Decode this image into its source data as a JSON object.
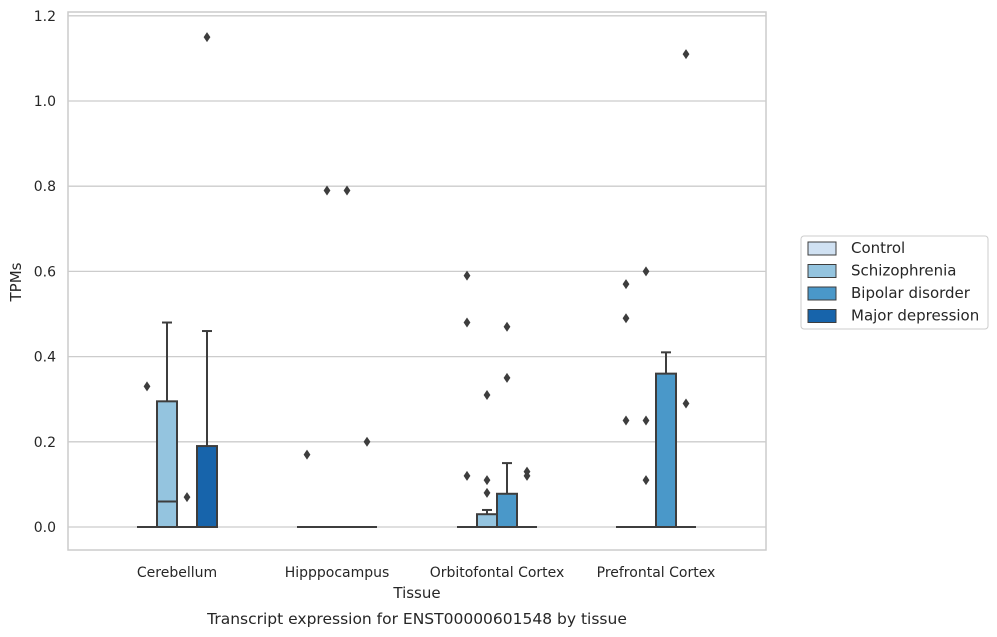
{
  "chart_data": {
    "type": "box",
    "title": "",
    "caption": "Transcript expression for ENST00000601548 by tissue",
    "xlabel": "Tissue",
    "ylabel": "TPMs",
    "ylim": [
      -0.055,
      1.21
    ],
    "yticks": [
      "0.0",
      "0.2",
      "0.4",
      "0.6",
      "0.8",
      "1.0",
      "1.2"
    ],
    "categories": [
      "Cerebellum",
      "Hipppocampus",
      "Orbitofontal Cortex",
      "Prefrontal Cortex"
    ],
    "grid": "horizontal",
    "legend_position": "right",
    "series": [
      {
        "name": "Control",
        "color": "#d0e1f2",
        "boxes": [
          {
            "q1": 0,
            "median": 0,
            "q3": 0,
            "whisker_low": 0,
            "whisker_high": 0,
            "outliers": [
              0.33
            ]
          },
          {
            "q1": 0,
            "median": 0,
            "q3": 0,
            "whisker_low": 0,
            "whisker_high": 0,
            "outliers": [
              0.17
            ]
          },
          {
            "q1": 0,
            "median": 0,
            "q3": 0,
            "whisker_low": 0,
            "whisker_high": 0,
            "outliers": [
              0.59,
              0.48,
              0.12
            ]
          },
          {
            "q1": 0,
            "median": 0,
            "q3": 0,
            "whisker_low": 0,
            "whisker_high": 0,
            "outliers": [
              0.57,
              0.49,
              0.25
            ]
          }
        ]
      },
      {
        "name": "Schizophrenia",
        "color": "#94c4df",
        "boxes": [
          {
            "q1": 0,
            "median": 0.06,
            "q3": 0.295,
            "whisker_low": 0,
            "whisker_high": 0.48,
            "outliers": []
          },
          {
            "q1": 0,
            "median": 0,
            "q3": 0,
            "whisker_low": 0,
            "whisker_high": 0,
            "outliers": [
              0.79
            ]
          },
          {
            "q1": 0,
            "median": 0,
            "q3": 0.03,
            "whisker_low": 0,
            "whisker_high": 0.04,
            "outliers": [
              0.31,
              0.11,
              0.08
            ]
          },
          {
            "q1": 0,
            "median": 0,
            "q3": 0,
            "whisker_low": 0,
            "whisker_high": 0,
            "outliers": [
              0.6,
              0.25,
              0.11
            ]
          }
        ]
      },
      {
        "name": "Bipolar disorder",
        "color": "#4a98c9",
        "boxes": [
          {
            "q1": 0,
            "median": 0,
            "q3": 0,
            "whisker_low": 0,
            "whisker_high": 0,
            "outliers": [
              0.07
            ]
          },
          {
            "q1": 0,
            "median": 0,
            "q3": 0,
            "whisker_low": 0,
            "whisker_high": 0,
            "outliers": [
              0.79
            ]
          },
          {
            "q1": 0,
            "median": 0,
            "q3": 0.078,
            "whisker_low": 0,
            "whisker_high": 0.15,
            "outliers": [
              0.47,
              0.35
            ]
          },
          {
            "q1": 0,
            "median": 0,
            "q3": 0.36,
            "whisker_low": 0,
            "whisker_high": 0.41,
            "outliers": []
          }
        ]
      },
      {
        "name": "Major depression",
        "color": "#1764ab",
        "boxes": [
          {
            "q1": 0,
            "median": 0,
            "q3": 0.19,
            "whisker_low": 0,
            "whisker_high": 0.46,
            "outliers": [
              1.15
            ]
          },
          {
            "q1": 0,
            "median": 0,
            "q3": 0,
            "whisker_low": 0,
            "whisker_high": 0,
            "outliers": [
              0.2
            ]
          },
          {
            "q1": 0,
            "median": 0,
            "q3": 0,
            "whisker_low": 0,
            "whisker_high": 0,
            "outliers": [
              0.13,
              0.12
            ]
          },
          {
            "q1": 0,
            "median": 0,
            "q3": 0,
            "whisker_low": 0,
            "whisker_high": 0,
            "outliers": [
              1.11,
              0.29
            ]
          }
        ]
      }
    ]
  }
}
